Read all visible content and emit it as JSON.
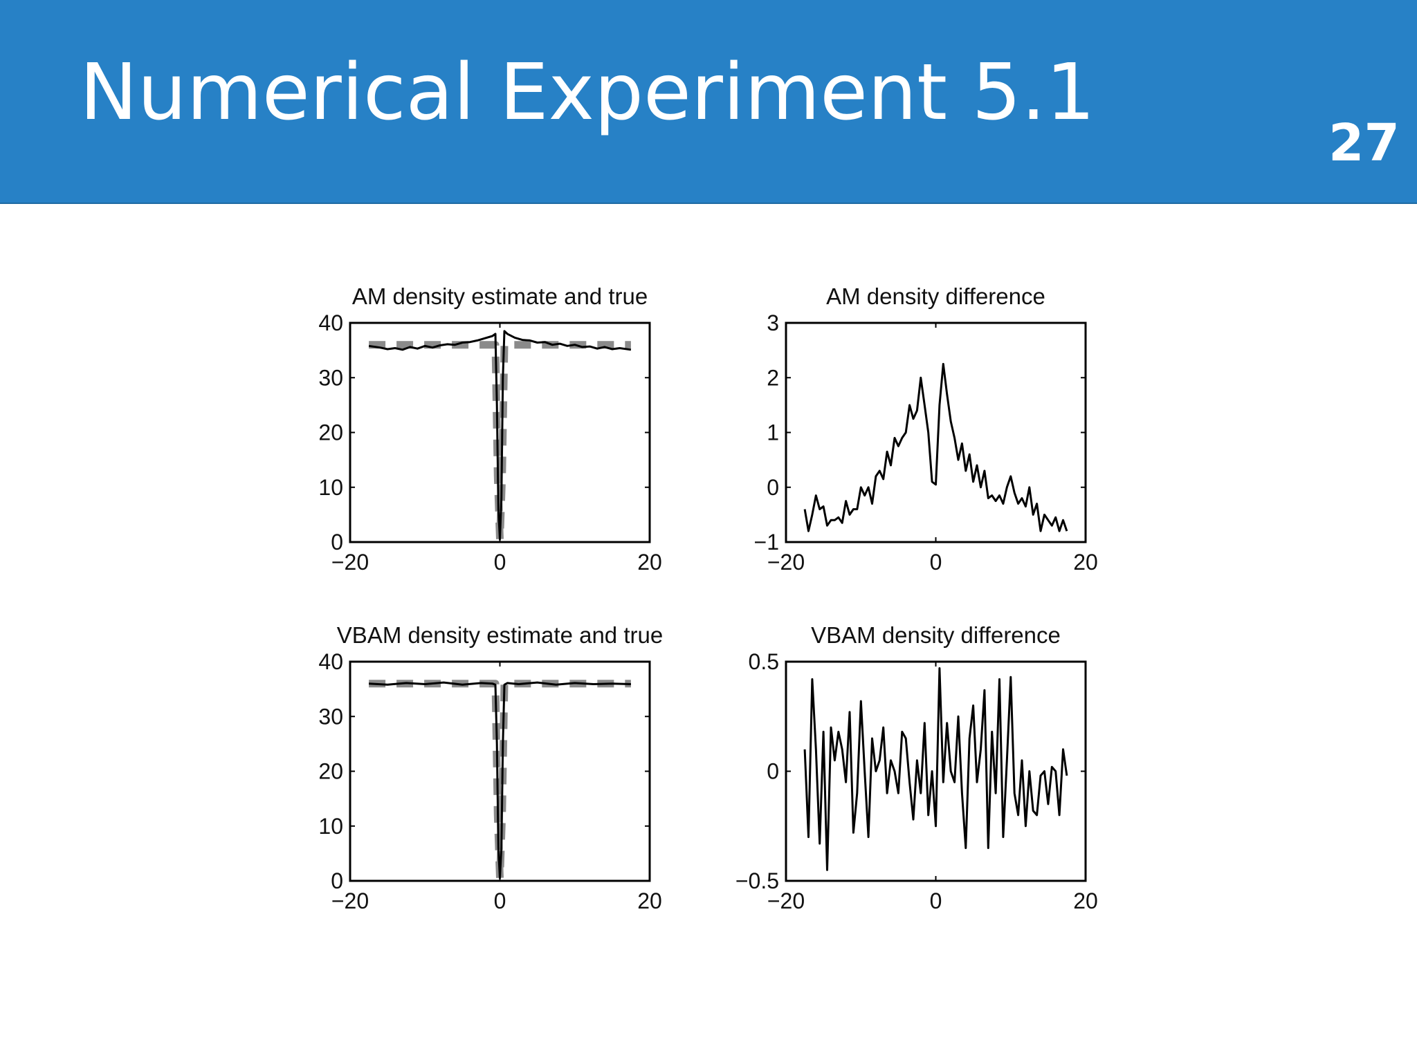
{
  "header": {
    "title": "Numerical Experiment 5.1",
    "page_number": "27",
    "background_color": "#2781c6",
    "text_color": "#ffffff"
  },
  "chart_data": [
    {
      "type": "line",
      "title": "AM density estimate and true",
      "xlim": [
        -20,
        20
      ],
      "ylim": [
        0,
        40
      ],
      "x_ticks": [
        -20,
        0,
        20
      ],
      "y_ticks": [
        0,
        10,
        20,
        30,
        40
      ],
      "x_tick_labels": [
        "−20",
        "0",
        "20"
      ],
      "y_tick_labels": [
        "0",
        "10",
        "20",
        "30",
        "40"
      ],
      "grid": false,
      "series": [
        {
          "style": "dashed-thick-gray",
          "color": "#8a8a8a",
          "x": [
            -17.5,
            -0.6,
            -0.3,
            0,
            0.3,
            0.6,
            17.5
          ],
          "y": [
            36,
            36,
            12,
            0.5,
            12,
            36,
            36
          ]
        },
        {
          "style": "solid-black",
          "color": "#000000",
          "x": [
            -17.5,
            -16,
            -15,
            -14,
            -13,
            -12,
            -11,
            -10,
            -9,
            -8,
            -7,
            -6,
            -5,
            -4,
            -3,
            -2,
            -1,
            -0.6,
            -0.4,
            -0.2,
            0,
            0.2,
            0.4,
            0.6,
            1,
            2,
            3,
            4,
            5,
            6,
            7,
            8,
            9,
            10,
            11,
            12,
            13,
            14,
            15,
            16,
            17.5
          ],
          "y": [
            35.8,
            35.5,
            35.2,
            35.4,
            35.1,
            35.6,
            35.3,
            35.8,
            35.5,
            35.9,
            36.1,
            36.0,
            36.4,
            36.5,
            36.8,
            37.2,
            37.6,
            38.0,
            25,
            6,
            0.5,
            8,
            30,
            38.5,
            38.0,
            37.3,
            36.9,
            36.8,
            36.4,
            36.5,
            36.0,
            36.2,
            35.8,
            36.0,
            35.6,
            35.7,
            35.3,
            35.6,
            35.2,
            35.4,
            35.1
          ]
        }
      ]
    },
    {
      "type": "line",
      "title": "AM density difference",
      "xlim": [
        -20,
        20
      ],
      "ylim": [
        -1,
        3
      ],
      "x_ticks": [
        -20,
        0,
        20
      ],
      "y_ticks": [
        -1,
        0,
        1,
        2,
        3
      ],
      "x_tick_labels": [
        "−20",
        "0",
        "20"
      ],
      "y_tick_labels": [
        "−1",
        "0",
        "1",
        "2",
        "3"
      ],
      "grid": false,
      "series": [
        {
          "style": "solid-black",
          "color": "#000000",
          "x": [
            -17.5,
            -17,
            -16.5,
            -16,
            -15.5,
            -15,
            -14.5,
            -14,
            -13.5,
            -13,
            -12.5,
            -12,
            -11.5,
            -11,
            -10.5,
            -10,
            -9.5,
            -9,
            -8.5,
            -8,
            -7.5,
            -7,
            -6.5,
            -6,
            -5.5,
            -5,
            -4.5,
            -4,
            -3.5,
            -3,
            -2.5,
            -2,
            -1.5,
            -1,
            -0.5,
            0,
            0.5,
            1,
            1.5,
            2,
            2.5,
            3,
            3.5,
            4,
            4.5,
            5,
            5.5,
            6,
            6.5,
            7,
            7.5,
            8,
            8.5,
            9,
            9.5,
            10,
            10.5,
            11,
            11.5,
            12,
            12.5,
            13,
            13.5,
            14,
            14.5,
            15,
            15.5,
            16,
            16.5,
            17,
            17.5
          ],
          "y": [
            -0.4,
            -0.8,
            -0.5,
            -0.15,
            -0.4,
            -0.35,
            -0.7,
            -0.6,
            -0.6,
            -0.55,
            -0.65,
            -0.25,
            -0.5,
            -0.4,
            -0.4,
            -0.0,
            -0.15,
            0.0,
            -0.3,
            0.2,
            0.3,
            0.15,
            0.65,
            0.4,
            0.9,
            0.75,
            0.9,
            1.0,
            1.5,
            1.25,
            1.4,
            2.0,
            1.5,
            1.0,
            0.1,
            0.05,
            1.5,
            2.25,
            1.7,
            1.2,
            0.9,
            0.5,
            0.8,
            0.3,
            0.6,
            0.1,
            0.4,
            0.0,
            0.3,
            -0.2,
            -0.15,
            -0.25,
            -0.15,
            -0.3,
            0.0,
            0.2,
            -0.1,
            -0.3,
            -0.2,
            -0.35,
            0.0,
            -0.5,
            -0.3,
            -0.8,
            -0.5,
            -0.6,
            -0.7,
            -0.55,
            -0.8,
            -0.6,
            -0.8
          ]
        }
      ]
    },
    {
      "type": "line",
      "title": "VBAM density estimate and true",
      "xlim": [
        -20,
        20
      ],
      "ylim": [
        0,
        40
      ],
      "x_ticks": [
        -20,
        0,
        20
      ],
      "y_ticks": [
        0,
        10,
        20,
        30,
        40
      ],
      "x_tick_labels": [
        "−20",
        "0",
        "20"
      ],
      "y_tick_labels": [
        "0",
        "10",
        "20",
        "30",
        "40"
      ],
      "grid": false,
      "series": [
        {
          "style": "dashed-thick-gray",
          "color": "#8a8a8a",
          "x": [
            -17.5,
            -0.6,
            -0.3,
            0,
            0.3,
            0.6,
            17.5
          ],
          "y": [
            36,
            36,
            12,
            0.5,
            12,
            36,
            36
          ]
        },
        {
          "style": "solid-black",
          "color": "#000000",
          "x": [
            -17.5,
            -15,
            -12.5,
            -10,
            -7.5,
            -5,
            -2.5,
            -1,
            -0.6,
            -0.4,
            -0.2,
            0,
            0.2,
            0.4,
            0.6,
            1,
            2.5,
            5,
            7.5,
            10,
            12.5,
            15,
            17.5
          ],
          "y": [
            36.0,
            35.8,
            36.1,
            35.9,
            36.2,
            35.8,
            36.1,
            36.0,
            35.8,
            25,
            6,
            0.5,
            6,
            25,
            35.8,
            36.1,
            35.9,
            36.2,
            35.8,
            36.1,
            35.9,
            36.0,
            35.9
          ]
        }
      ]
    },
    {
      "type": "line",
      "title": "VBAM density difference",
      "xlim": [
        -20,
        20
      ],
      "ylim": [
        -0.5,
        0.5
      ],
      "x_ticks": [
        -20,
        0,
        20
      ],
      "y_ticks": [
        -0.5,
        0,
        0.5
      ],
      "x_tick_labels": [
        "−20",
        "0",
        "20"
      ],
      "y_tick_labels": [
        "−0.5",
        "0",
        "0.5"
      ],
      "grid": false,
      "series": [
        {
          "style": "solid-black",
          "color": "#000000",
          "x": [
            -17.5,
            -17,
            -16.5,
            -16,
            -15.5,
            -15,
            -14.5,
            -14,
            -13.5,
            -13,
            -12.5,
            -12,
            -11.5,
            -11,
            -10.5,
            -10,
            -9.5,
            -9,
            -8.5,
            -8,
            -7.5,
            -7,
            -6.5,
            -6,
            -5.5,
            -5,
            -4.5,
            -4,
            -3.5,
            -3,
            -2.5,
            -2,
            -1.5,
            -1,
            -0.5,
            0,
            0.5,
            1,
            1.5,
            2,
            2.5,
            3,
            3.5,
            4,
            4.5,
            5,
            5.5,
            6,
            6.5,
            7,
            7.5,
            8,
            8.5,
            9,
            9.5,
            10,
            10.5,
            11,
            11.5,
            12,
            12.5,
            13,
            13.5,
            14,
            14.5,
            15,
            15.5,
            16,
            16.5,
            17,
            17.5
          ],
          "y": [
            0.1,
            -0.3,
            0.42,
            0.1,
            -0.33,
            0.18,
            -0.45,
            0.2,
            0.05,
            0.18,
            0.1,
            -0.05,
            0.27,
            -0.28,
            -0.1,
            0.32,
            0.0,
            -0.3,
            0.15,
            0.0,
            0.05,
            0.2,
            -0.1,
            0.05,
            0.0,
            -0.1,
            0.18,
            0.15,
            -0.05,
            -0.22,
            0.05,
            -0.1,
            0.22,
            -0.2,
            0.0,
            -0.25,
            0.47,
            -0.05,
            0.22,
            0.0,
            -0.05,
            0.25,
            -0.1,
            -0.35,
            0.15,
            0.3,
            -0.05,
            0.1,
            0.37,
            -0.35,
            0.18,
            -0.1,
            0.42,
            -0.3,
            0.05,
            0.43,
            -0.1,
            -0.2,
            0.05,
            -0.25,
            0.0,
            -0.18,
            -0.2,
            -0.02,
            0.0,
            -0.15,
            0.02,
            0.0,
            -0.2,
            0.1,
            -0.02
          ]
        }
      ]
    }
  ]
}
